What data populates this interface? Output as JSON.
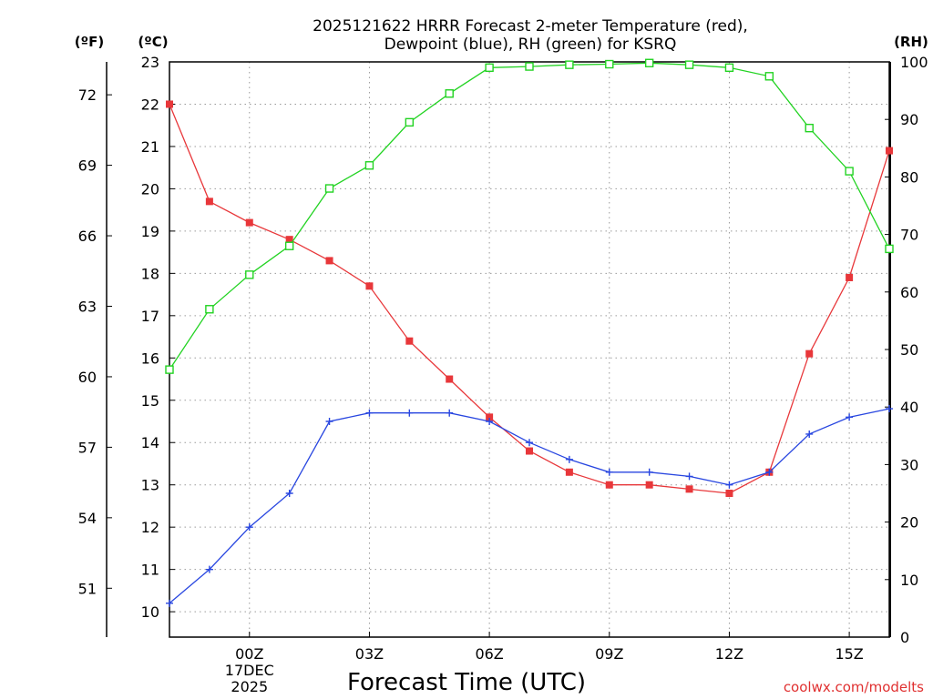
{
  "chart_data": {
    "type": "line",
    "title": [
      "2025121622 HRRR Forecast 2-meter Temperature (red),",
      "Dewpoint (blue), RH (green) for KSRQ"
    ],
    "xlabel": "Forecast Time (UTC)",
    "credit": "coolwx.com/modelts",
    "units": {
      "fahrenheit": "(ºF)",
      "celsius": "(ºC)",
      "rh": "(RH)"
    },
    "x": [
      -2,
      -1,
      0,
      1,
      2,
      3,
      4,
      5,
      6,
      7,
      8,
      9,
      10,
      11,
      12,
      13,
      14,
      15,
      16
    ],
    "xlim": [
      -2,
      16
    ],
    "x_ticks": [
      {
        "x": 0,
        "label": "00Z",
        "sub": [
          "17DEC",
          "2025"
        ]
      },
      {
        "x": 3,
        "label": "03Z"
      },
      {
        "x": 6,
        "label": "06Z"
      },
      {
        "x": 9,
        "label": "09Z"
      },
      {
        "x": 12,
        "label": "12Z"
      },
      {
        "x": 15,
        "label": "15Z"
      }
    ],
    "ylim_celsius": [
      9.4,
      23
    ],
    "ylim_rh": [
      0,
      100
    ],
    "celsius_ticks": [
      "10",
      "11",
      "12",
      "13",
      "14",
      "15",
      "16",
      "17",
      "18",
      "19",
      "20",
      "21",
      "22",
      "23"
    ],
    "fahrenheit_ticks": [
      "51",
      "54",
      "57",
      "60",
      "63",
      "66",
      "69",
      "72"
    ],
    "rh_ticks": [
      "0",
      "10",
      "20",
      "30",
      "40",
      "50",
      "60",
      "70",
      "80",
      "90",
      "100"
    ],
    "grid": true,
    "series": [
      {
        "name": "Temperature",
        "axis": "celsius",
        "color": "#e8373a",
        "marker": "filled-square",
        "values": [
          22.0,
          19.7,
          19.2,
          18.8,
          18.3,
          17.7,
          16.4,
          15.5,
          14.6,
          13.8,
          13.3,
          13.0,
          13.0,
          12.9,
          12.8,
          13.3,
          16.1,
          17.9,
          20.9
        ]
      },
      {
        "name": "Dewpoint",
        "axis": "celsius",
        "color": "#2846e0",
        "marker": "plus",
        "values": [
          10.2,
          11.0,
          12.0,
          12.8,
          14.5,
          14.7,
          14.7,
          14.7,
          14.5,
          14.0,
          13.6,
          13.3,
          13.3,
          13.2,
          13.0,
          13.3,
          14.2,
          14.6,
          14.8
        ]
      },
      {
        "name": "RH",
        "axis": "rh",
        "color": "#22d322",
        "marker": "open-square",
        "values": [
          46.5,
          57,
          63,
          68,
          78,
          82,
          89.5,
          94.5,
          99,
          99.2,
          99.5,
          99.6,
          99.8,
          99.5,
          99,
          97.5,
          88.5,
          81,
          67.5
        ]
      }
    ]
  }
}
